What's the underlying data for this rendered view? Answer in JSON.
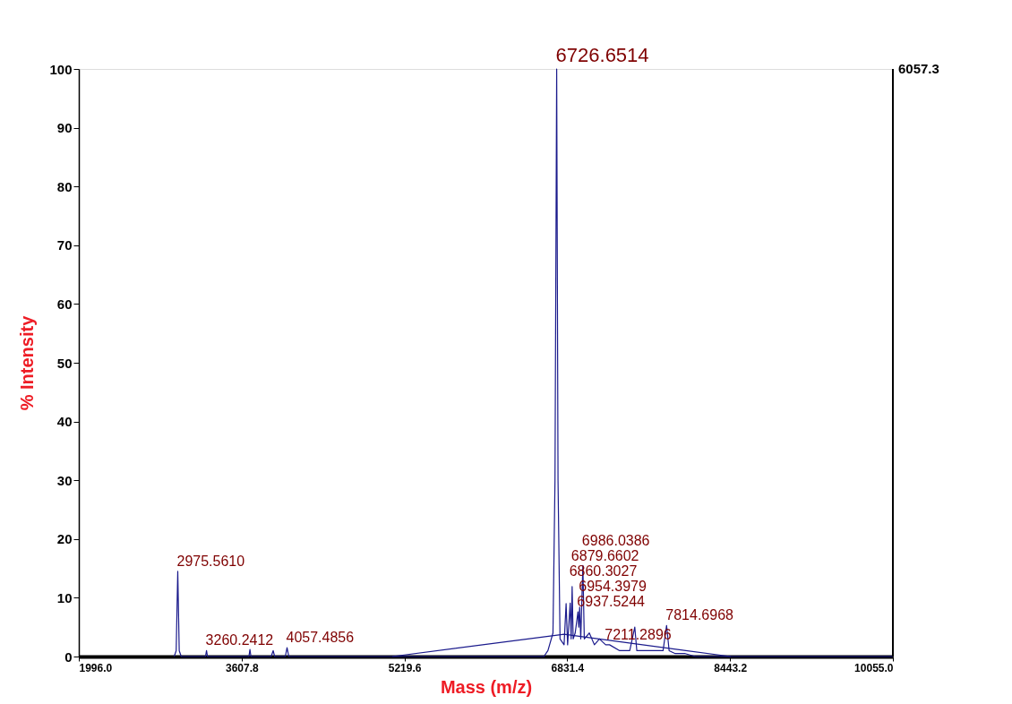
{
  "chart_data": {
    "type": "line",
    "xlabel": "Mass (m/z)",
    "ylabel": "% Intensity",
    "xlim": [
      1996.0,
      10055.0
    ],
    "xticks": [
      {
        "value": 1996.0,
        "label": "1996.0"
      },
      {
        "value": 3607.8,
        "label": "3607.8"
      },
      {
        "value": 5219.6,
        "label": "5219.6"
      },
      {
        "value": 6831.4,
        "label": "6831.4"
      },
      {
        "value": 8443.2,
        "label": "8443.2"
      },
      {
        "value": 10055.0,
        "label": "10055.0"
      }
    ],
    "ylim": [
      0,
      100
    ],
    "yticks": [
      0,
      10,
      20,
      30,
      40,
      50,
      60,
      70,
      80,
      90,
      100
    ],
    "grid": false,
    "legend": false,
    "marker": "none",
    "line_style": "solid",
    "series": [
      {
        "color": "#1a1a8c",
        "x": [
          2940,
          2960,
          2975.56,
          2990,
          3010,
          3250,
          3260.24,
          3270,
          3680,
          3690,
          3700,
          3900,
          3920,
          3935,
          4040,
          4057.49,
          4075,
          6600,
          6640,
          6690,
          6710,
          6726.65,
          6740,
          6760,
          6800,
          6820,
          6835,
          6860.3,
          6870,
          6879.66,
          6890,
          6910,
          6937.52,
          6945,
          6954.4,
          6965,
          6986.04,
          7000,
          7050,
          7100,
          7150,
          7211.29,
          7250,
          7350,
          7450,
          7500,
          7520,
          7600,
          7700,
          7780,
          7814.7,
          7840,
          7900,
          8000,
          8100,
          10055
        ],
        "values": [
          0,
          1,
          14.5,
          1,
          0,
          0,
          1,
          0,
          0,
          1.2,
          0,
          0,
          1,
          0,
          0,
          1.5,
          0,
          0,
          1,
          4,
          30,
          100,
          30,
          3,
          2,
          9,
          2,
          9.1,
          3,
          11.9,
          3,
          4,
          7.6,
          5,
          8.4,
          3,
          15.5,
          3,
          4,
          2,
          3,
          2,
          2,
          1,
          1,
          5,
          1,
          1,
          1,
          1,
          5.3,
          1,
          0.5,
          0.5,
          0,
          0
        ]
      },
      {
        "color": "#1a1a8c",
        "x": [
          5100,
          6800,
          8450
        ],
        "values": [
          0,
          3.8,
          0
        ]
      }
    ],
    "annotations": [
      "6057.3",
      {
        "text": "6726.6514",
        "x": 6726.6514,
        "y": 100
      },
      {
        "text": "2975.5610",
        "x": 2975.561,
        "y": 14.5
      },
      {
        "text": "3260.2412",
        "x": 3260.2412,
        "y": 1
      },
      {
        "text": "4057.4856",
        "x": 4057.4856,
        "y": 1.5
      },
      {
        "text": "6986.0386",
        "x": 6986.0386,
        "y": 15.5
      },
      {
        "text": "6879.6602",
        "x": 6879.6602,
        "y": 11.9
      },
      {
        "text": "6954.3979",
        "x": 6954.3979,
        "y": 8.4
      },
      {
        "text": "6937.5244",
        "x": 6937.5244,
        "y": 7.6
      },
      {
        "text": "6860.3027",
        "x": 6860.3027,
        "y": 9.1
      },
      {
        "text": "7814.6968",
        "x": 7814.6968,
        "y": 5.3
      },
      {
        "text": "7211.2896",
        "x": 7211.2896,
        "y": 2
      }
    ]
  }
}
